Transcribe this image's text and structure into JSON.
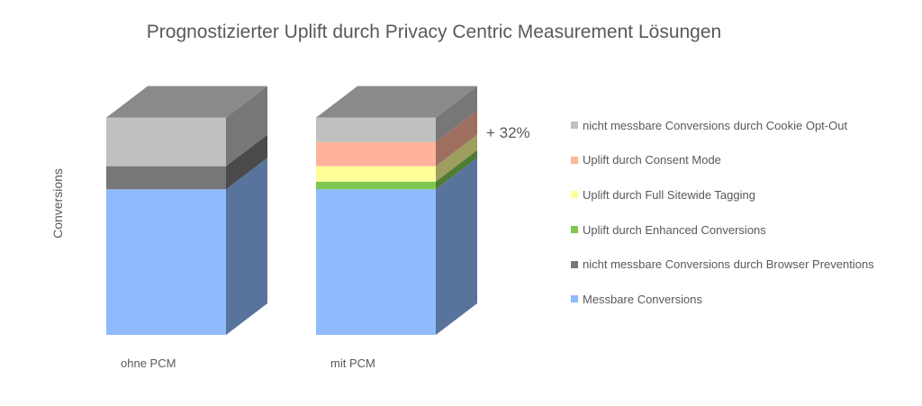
{
  "chart_data": {
    "type": "bar",
    "stacked": true,
    "three_d": true,
    "title": "Prognostizierter Uplift durch Privacy Centric Measurement Lösungen",
    "ylabel": "Conversions",
    "xlabel": "",
    "ylim": [
      0,
      100
    ],
    "grid": false,
    "legend_position": "right",
    "categories": [
      "ohne PCM",
      "mit PCM"
    ],
    "series": [
      {
        "name": "Messbare Conversions",
        "color": "#8fbbfc",
        "values": [
          66,
          66
        ]
      },
      {
        "name": "nicht messbare Conversions durch Browser Preventions",
        "color": "#777777",
        "values": [
          10.5,
          0
        ]
      },
      {
        "name": "Uplift durch Enhanced Conversions",
        "color": "#7fc650",
        "values": [
          0,
          3.5
        ]
      },
      {
        "name": "Uplift durch Full Sitewide Tagging",
        "color": "#ffff99",
        "values": [
          0,
          7
        ]
      },
      {
        "name": "Uplift durch Consent Mode",
        "color": "#ffb39b",
        "values": [
          0,
          11
        ]
      },
      {
        "name": "nicht messbare Conversions durch Cookie Opt-Out",
        "color": "#c0c0c0",
        "values": [
          22,
          11
        ]
      }
    ],
    "annotations": [
      {
        "text": "+ 32%",
        "category": "mit PCM"
      }
    ],
    "legend_order": [
      "nicht messbare Conversions durch Cookie Opt-Out",
      "Uplift durch Consent Mode",
      "Uplift durch Full Sitewide Tagging",
      "Uplift durch Enhanced Conversions",
      "nicht messbare Conversions durch Browser Preventions",
      "Messbare Conversions"
    ]
  }
}
